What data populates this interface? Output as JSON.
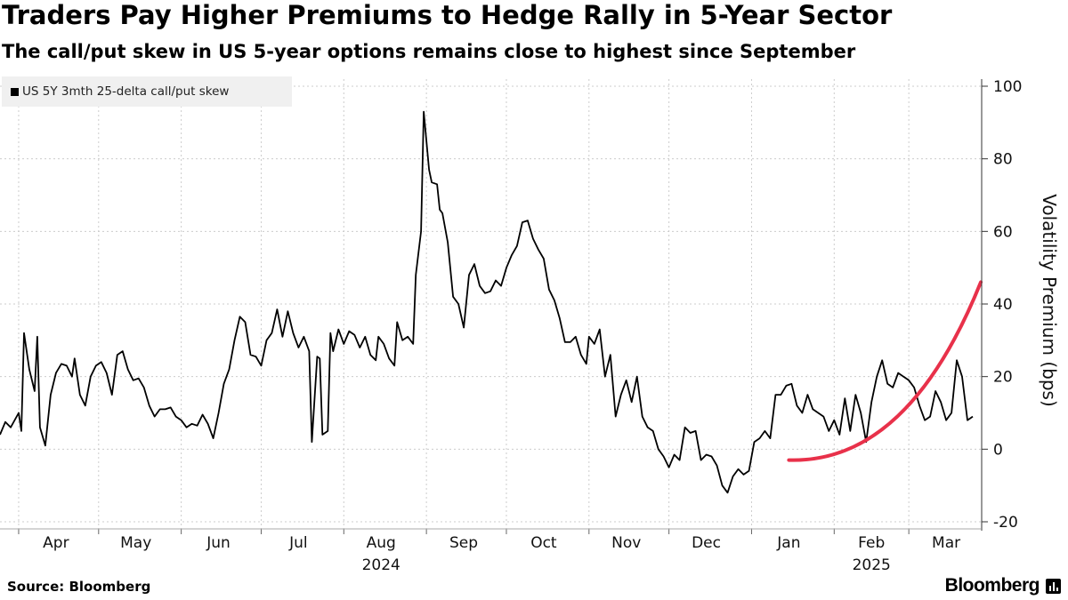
{
  "header": {
    "title": "Traders Pay Higher Premiums to Hedge Rally in 5-Year Sector",
    "subtitle": "The call/put skew in US 5-year options remains close to highest since September"
  },
  "footer": {
    "source": "Source: Bloomberg",
    "brand": "Bloomberg"
  },
  "colors": {
    "series": "#000000",
    "annotation": "#e8314a",
    "grid": "#cccccc"
  },
  "chart_data": {
    "type": "line",
    "title": "Traders Pay Higher Premiums to Hedge Rally in 5-Year Sector",
    "subtitle": "The call/put skew in US 5-year options remains close to highest since September",
    "ylabel": "Volatility Premium (bps)",
    "xlabel": "",
    "ylim": [
      -20,
      100
    ],
    "yticks": [
      100,
      80,
      60,
      40,
      20,
      0,
      -20
    ],
    "y_axis_side": "right",
    "grid": true,
    "legend_position": "top-left",
    "x_range": [
      "2024-03-25",
      "2025-03-28"
    ],
    "x_ticks": [
      {
        "label": "Apr",
        "date": "2024-04-15"
      },
      {
        "label": "May",
        "date": "2024-05-15"
      },
      {
        "label": "Jun",
        "date": "2024-06-15"
      },
      {
        "label": "Jul",
        "date": "2024-07-15"
      },
      {
        "label": "Aug",
        "date": "2024-08-15"
      },
      {
        "label": "Sep",
        "date": "2024-09-15"
      },
      {
        "label": "Oct",
        "date": "2024-10-15"
      },
      {
        "label": "Nov",
        "date": "2024-11-15"
      },
      {
        "label": "Dec",
        "date": "2024-12-15"
      },
      {
        "label": "Jan",
        "date": "2025-01-15"
      },
      {
        "label": "Feb",
        "date": "2025-02-15"
      },
      {
        "label": "Mar",
        "date": "2025-03-15"
      }
    ],
    "year_labels": [
      {
        "label": "2024",
        "date": "2024-08-15"
      },
      {
        "label": "2025",
        "date": "2025-02-15"
      }
    ],
    "series": [
      {
        "name": "US 5Y 3mth 25-delta call/put skew",
        "points": [
          [
            "2024-03-25",
            4
          ],
          [
            "2024-03-27",
            7.5
          ],
          [
            "2024-03-29",
            6
          ],
          [
            "2024-04-01",
            10
          ],
          [
            "2024-04-02",
            5
          ],
          [
            "2024-04-03",
            32
          ],
          [
            "2024-04-05",
            22
          ],
          [
            "2024-04-07",
            16
          ],
          [
            "2024-04-08",
            31
          ],
          [
            "2024-04-09",
            6
          ],
          [
            "2024-04-11",
            1
          ],
          [
            "2024-04-13",
            15
          ],
          [
            "2024-04-15",
            21
          ],
          [
            "2024-04-17",
            23.5
          ],
          [
            "2024-04-19",
            23
          ],
          [
            "2024-04-21",
            20
          ],
          [
            "2024-04-22",
            25
          ],
          [
            "2024-04-24",
            15
          ],
          [
            "2024-04-26",
            12
          ],
          [
            "2024-04-28",
            20
          ],
          [
            "2024-04-30",
            23
          ],
          [
            "2024-05-02",
            24
          ],
          [
            "2024-05-04",
            21
          ],
          [
            "2024-05-06",
            15
          ],
          [
            "2024-05-08",
            26
          ],
          [
            "2024-05-10",
            27
          ],
          [
            "2024-05-12",
            22
          ],
          [
            "2024-05-14",
            19
          ],
          [
            "2024-05-16",
            19.5
          ],
          [
            "2024-05-18",
            17
          ],
          [
            "2024-05-20",
            12
          ],
          [
            "2024-05-22",
            9
          ],
          [
            "2024-05-24",
            11
          ],
          [
            "2024-05-26",
            11
          ],
          [
            "2024-05-28",
            11.5
          ],
          [
            "2024-05-30",
            9
          ],
          [
            "2024-06-01",
            8
          ],
          [
            "2024-06-03",
            6
          ],
          [
            "2024-06-05",
            7
          ],
          [
            "2024-06-07",
            6.5
          ],
          [
            "2024-06-09",
            9.5
          ],
          [
            "2024-06-11",
            7
          ],
          [
            "2024-06-13",
            3
          ],
          [
            "2024-06-15",
            10
          ],
          [
            "2024-06-17",
            18
          ],
          [
            "2024-06-19",
            22
          ],
          [
            "2024-06-21",
            30
          ],
          [
            "2024-06-23",
            36.5
          ],
          [
            "2024-06-25",
            35
          ],
          [
            "2024-06-27",
            26
          ],
          [
            "2024-06-29",
            25.5
          ],
          [
            "2024-07-01",
            23
          ],
          [
            "2024-07-03",
            30
          ],
          [
            "2024-07-05",
            32
          ],
          [
            "2024-07-07",
            38.5
          ],
          [
            "2024-07-09",
            31
          ],
          [
            "2024-07-11",
            38
          ],
          [
            "2024-07-13",
            32
          ],
          [
            "2024-07-15",
            28
          ],
          [
            "2024-07-17",
            31
          ],
          [
            "2024-07-19",
            27
          ],
          [
            "2024-07-20",
            2
          ],
          [
            "2024-07-22",
            25.5
          ],
          [
            "2024-07-23",
            25
          ],
          [
            "2024-07-24",
            4
          ],
          [
            "2024-07-26",
            5
          ],
          [
            "2024-07-27",
            32
          ],
          [
            "2024-07-28",
            27
          ],
          [
            "2024-07-30",
            33
          ],
          [
            "2024-08-01",
            29
          ],
          [
            "2024-08-03",
            32.5
          ],
          [
            "2024-08-05",
            31.5
          ],
          [
            "2024-08-07",
            28
          ],
          [
            "2024-08-09",
            31
          ],
          [
            "2024-08-11",
            26
          ],
          [
            "2024-08-13",
            24.5
          ],
          [
            "2024-08-14",
            31
          ],
          [
            "2024-08-16",
            29
          ],
          [
            "2024-08-18",
            25
          ],
          [
            "2024-08-20",
            23
          ],
          [
            "2024-08-21",
            35
          ],
          [
            "2024-08-23",
            30
          ],
          [
            "2024-08-25",
            31
          ],
          [
            "2024-08-27",
            29
          ],
          [
            "2024-08-28",
            48
          ],
          [
            "2024-08-30",
            60
          ],
          [
            "2024-08-31",
            93
          ],
          [
            "2024-09-02",
            77
          ],
          [
            "2024-09-03",
            73.5
          ],
          [
            "2024-09-05",
            73
          ],
          [
            "2024-09-06",
            66
          ],
          [
            "2024-09-07",
            65
          ],
          [
            "2024-09-09",
            57
          ],
          [
            "2024-09-11",
            42
          ],
          [
            "2024-09-13",
            40
          ],
          [
            "2024-09-15",
            33.5
          ],
          [
            "2024-09-17",
            48
          ],
          [
            "2024-09-19",
            51
          ],
          [
            "2024-09-21",
            45
          ],
          [
            "2024-09-23",
            43
          ],
          [
            "2024-09-25",
            43.5
          ],
          [
            "2024-09-27",
            46.5
          ],
          [
            "2024-09-29",
            45
          ],
          [
            "2024-10-01",
            50
          ],
          [
            "2024-10-03",
            53.5
          ],
          [
            "2024-10-05",
            56
          ],
          [
            "2024-10-07",
            62.5
          ],
          [
            "2024-10-09",
            63
          ],
          [
            "2024-10-11",
            58
          ],
          [
            "2024-10-13",
            55
          ],
          [
            "2024-10-15",
            52.5
          ],
          [
            "2024-10-17",
            44
          ],
          [
            "2024-10-19",
            41
          ],
          [
            "2024-10-21",
            36
          ],
          [
            "2024-10-23",
            29.5
          ],
          [
            "2024-10-25",
            29.5
          ],
          [
            "2024-10-27",
            31
          ],
          [
            "2024-10-29",
            26
          ],
          [
            "2024-10-31",
            23.5
          ],
          [
            "2024-11-01",
            31
          ],
          [
            "2024-11-03",
            29
          ],
          [
            "2024-11-05",
            33
          ],
          [
            "2024-11-07",
            20
          ],
          [
            "2024-11-09",
            26
          ],
          [
            "2024-11-11",
            9
          ],
          [
            "2024-11-13",
            15
          ],
          [
            "2024-11-15",
            19
          ],
          [
            "2024-11-17",
            13
          ],
          [
            "2024-11-19",
            20
          ],
          [
            "2024-11-21",
            9
          ],
          [
            "2024-11-23",
            6
          ],
          [
            "2024-11-25",
            5
          ],
          [
            "2024-11-27",
            0
          ],
          [
            "2024-11-29",
            -2
          ],
          [
            "2024-12-01",
            -5
          ],
          [
            "2024-12-03",
            -1.5
          ],
          [
            "2024-12-05",
            -3
          ],
          [
            "2024-12-07",
            6
          ],
          [
            "2024-12-09",
            4.5
          ],
          [
            "2024-12-11",
            5
          ],
          [
            "2024-12-13",
            -3
          ],
          [
            "2024-12-15",
            -1.5
          ],
          [
            "2024-12-17",
            -2
          ],
          [
            "2024-12-19",
            -4.5
          ],
          [
            "2024-12-21",
            -10
          ],
          [
            "2024-12-23",
            -12
          ],
          [
            "2024-12-25",
            -7.5
          ],
          [
            "2024-12-27",
            -5.5
          ],
          [
            "2024-12-29",
            -7
          ],
          [
            "2024-12-31",
            -6
          ],
          [
            "2025-01-02",
            2
          ],
          [
            "2025-01-04",
            3
          ],
          [
            "2025-01-06",
            5
          ],
          [
            "2025-01-08",
            3
          ],
          [
            "2025-01-10",
            15
          ],
          [
            "2025-01-12",
            15
          ],
          [
            "2025-01-14",
            17.5
          ],
          [
            "2025-01-16",
            18
          ],
          [
            "2025-01-18",
            12
          ],
          [
            "2025-01-20",
            10
          ],
          [
            "2025-01-22",
            15
          ],
          [
            "2025-01-24",
            11
          ],
          [
            "2025-01-26",
            10
          ],
          [
            "2025-01-28",
            9
          ],
          [
            "2025-01-30",
            5
          ],
          [
            "2025-02-01",
            8
          ],
          [
            "2025-02-03",
            4
          ],
          [
            "2025-02-05",
            14
          ],
          [
            "2025-02-07",
            5
          ],
          [
            "2025-02-09",
            15
          ],
          [
            "2025-02-11",
            10
          ],
          [
            "2025-02-13",
            2
          ],
          [
            "2025-02-15",
            13
          ],
          [
            "2025-02-17",
            20
          ],
          [
            "2025-02-19",
            24.5
          ],
          [
            "2025-02-21",
            18
          ],
          [
            "2025-02-23",
            17
          ],
          [
            "2025-02-25",
            21
          ],
          [
            "2025-02-27",
            20
          ],
          [
            "2025-03-01",
            19
          ],
          [
            "2025-03-03",
            17
          ],
          [
            "2025-03-05",
            12
          ],
          [
            "2025-03-07",
            8
          ],
          [
            "2025-03-09",
            9
          ],
          [
            "2025-03-11",
            16
          ],
          [
            "2025-03-13",
            13
          ],
          [
            "2025-03-15",
            8
          ],
          [
            "2025-03-17",
            10
          ],
          [
            "2025-03-19",
            24.5
          ],
          [
            "2025-03-21",
            20
          ],
          [
            "2025-03-23",
            8
          ],
          [
            "2025-03-25",
            9
          ]
        ]
      }
    ],
    "annotations": [
      {
        "type": "trend-arc",
        "color": "#e8314a",
        "from": [
          "2025-01-15",
          -3
        ],
        "to": [
          "2025-03-28",
          46
        ]
      }
    ]
  },
  "legend": {
    "label": "US 5Y 3mth 25-delta call/put skew"
  }
}
